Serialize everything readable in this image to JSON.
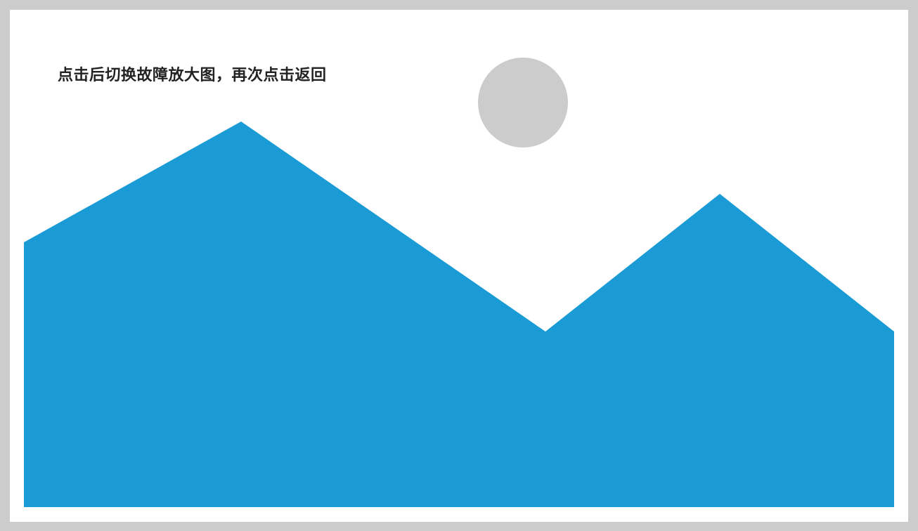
{
  "placeholder": {
    "hint_text": "点击后切换故障放大图，再次点击返回",
    "sun_color": "#cccccc",
    "mountain_color": "#1a9bd5",
    "icon": "image-placeholder-icon"
  }
}
